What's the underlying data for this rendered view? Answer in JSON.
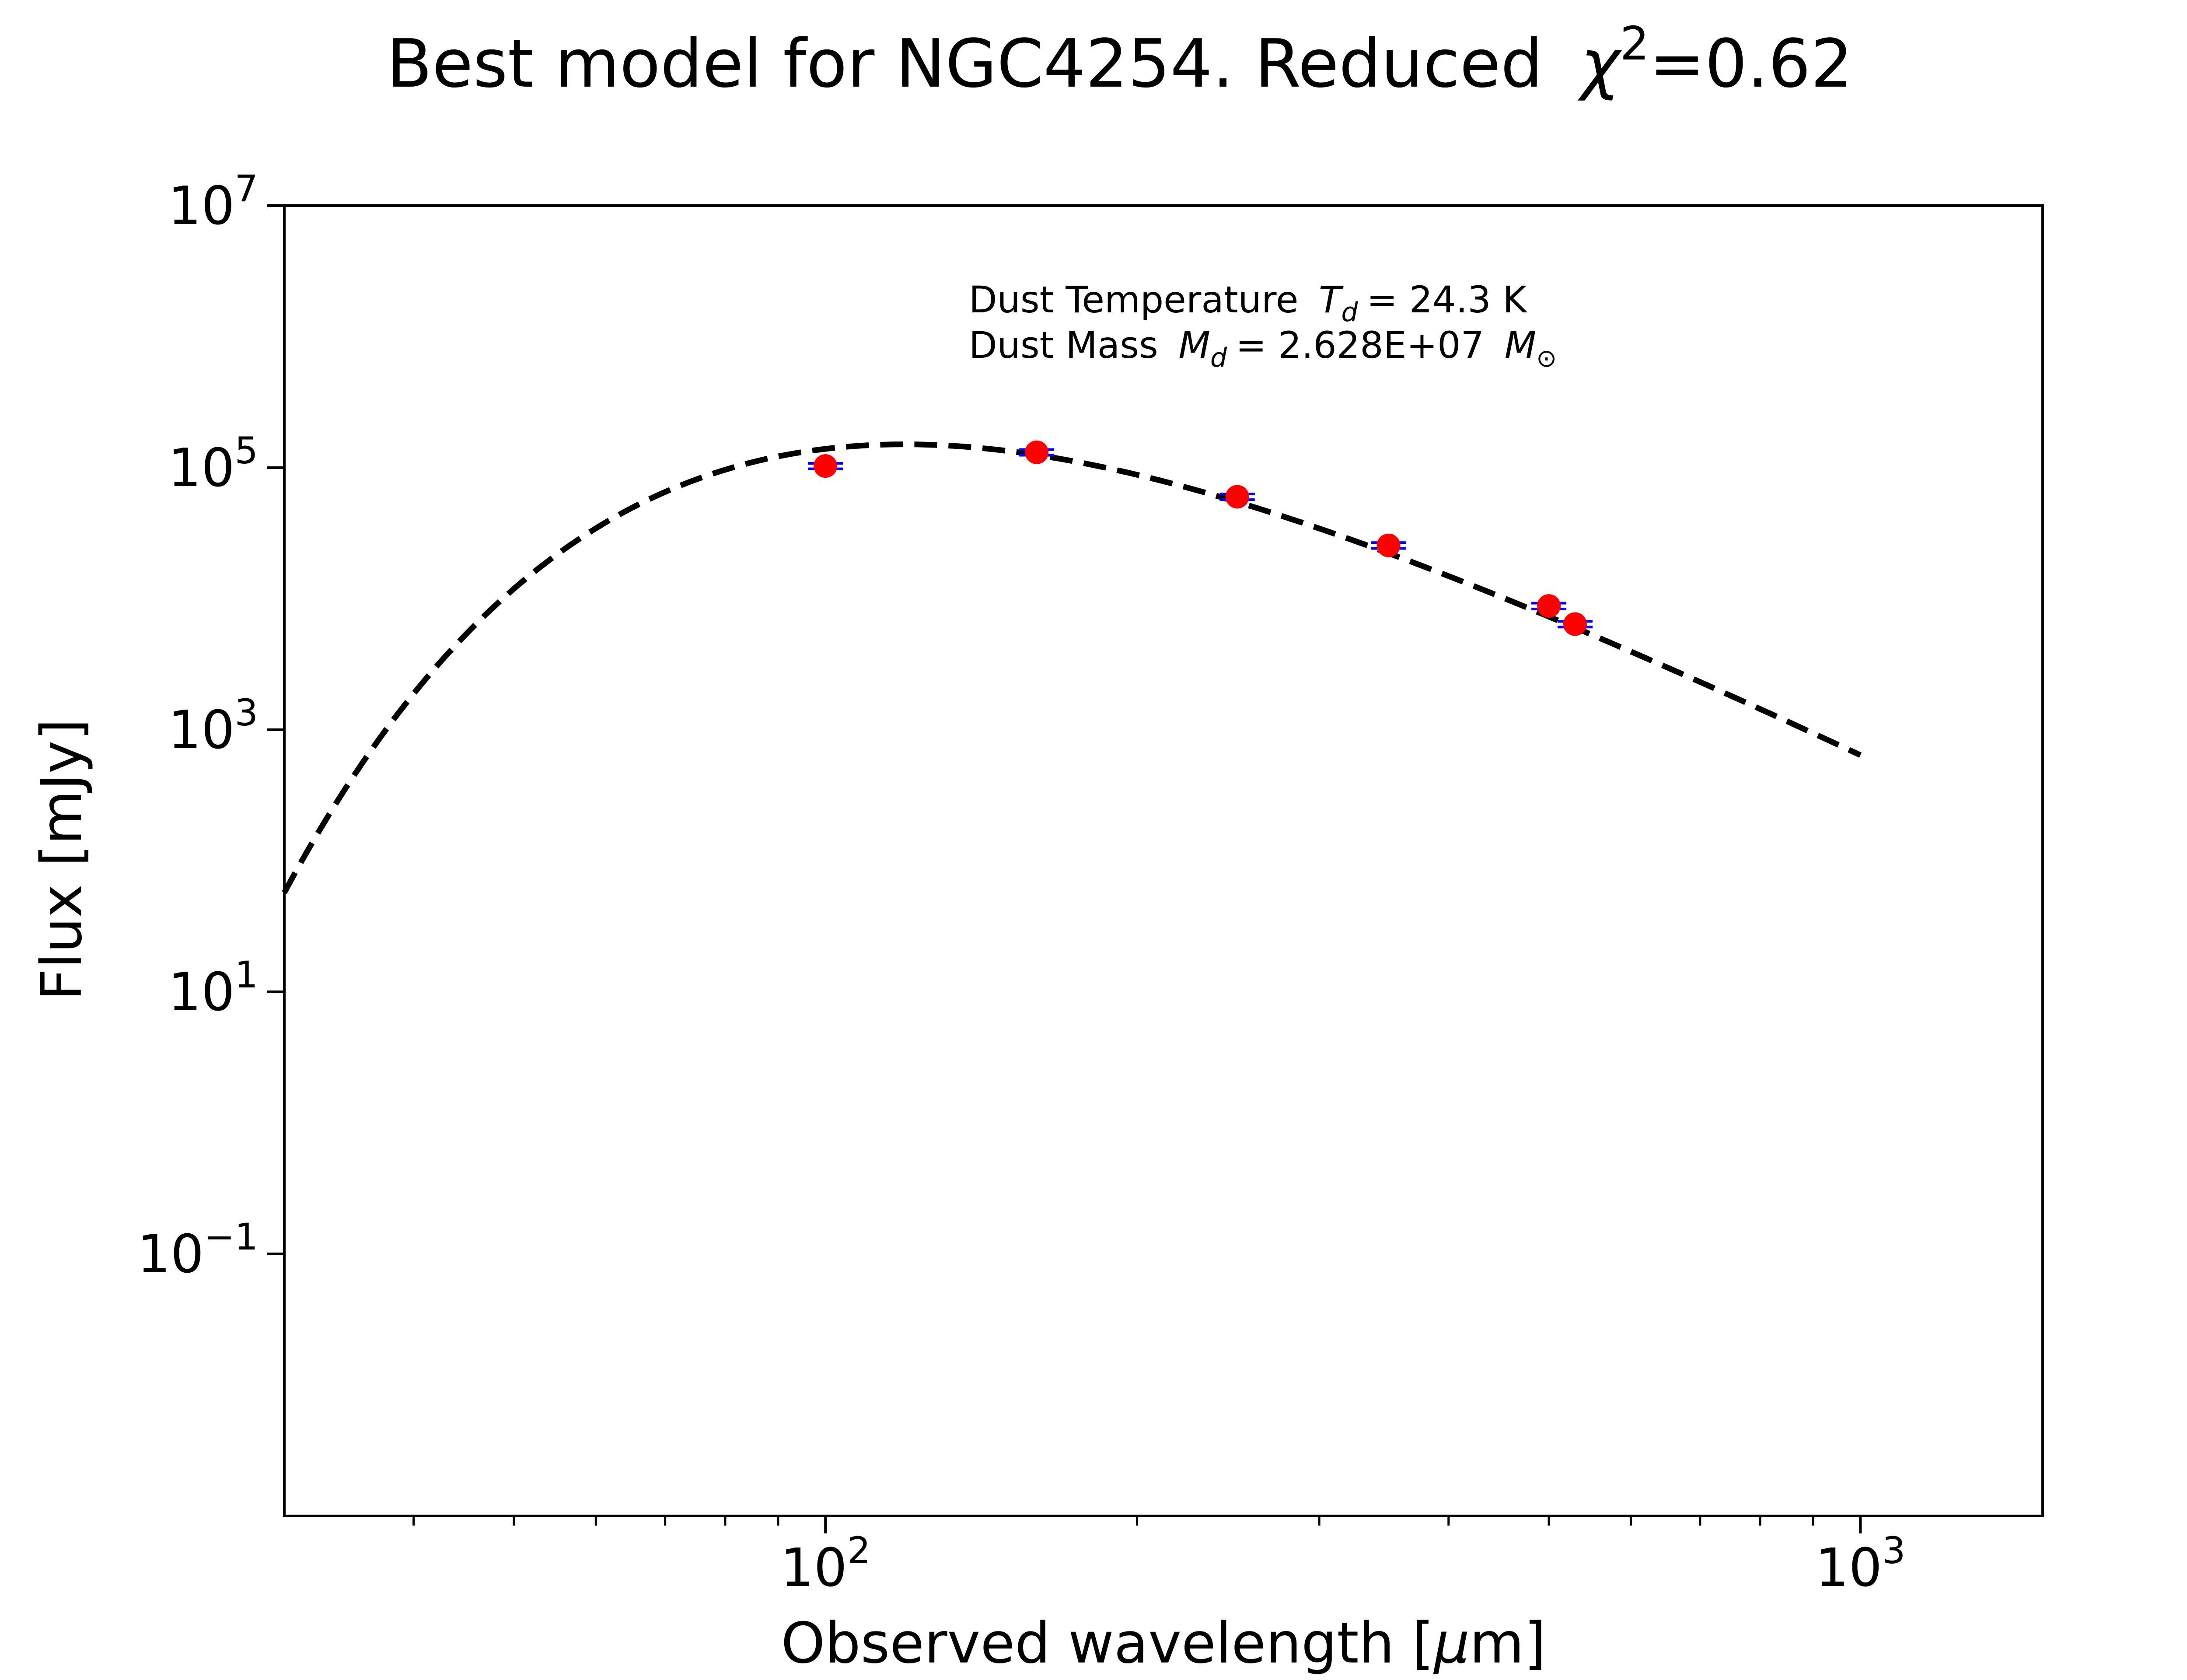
{
  "chart_data": {
    "type": "line",
    "title": "Best model for NGC4254. Reduced",
    "title_chi_symbol": "χ",
    "title_chi_power": "2",
    "title_chi_value": "=0.62",
    "xlabel": "Observed wavelength [",
    "xlabel_mu": "μ",
    "xlabel_end": "m]",
    "ylabel": "Flux [mJy]",
    "x_scale": "log",
    "y_scale": "log",
    "xlim": [
      30,
      1500
    ],
    "ylim": [
      0.001,
      10000000
    ],
    "x_ticks": [
      {
        "base": "10",
        "exp": "2",
        "value": 100
      },
      {
        "base": "10",
        "exp": "3",
        "value": 1000
      }
    ],
    "y_ticks": [
      {
        "base": "10",
        "exp": "−1",
        "value": 0.1
      },
      {
        "base": "10",
        "exp": "1",
        "value": 10
      },
      {
        "base": "10",
        "exp": "3",
        "value": 1000
      },
      {
        "base": "10",
        "exp": "5",
        "value": 100000
      },
      {
        "base": "10",
        "exp": "7",
        "value": 10000000
      }
    ],
    "grid": false,
    "annotation": {
      "temp_prefix": "Dust Temperature",
      "temp_symbol": "T",
      "temp_sub": "d",
      "temp_value": "= 24.3 K",
      "mass_prefix": "Dust Mass",
      "mass_symbol": "M",
      "mass_sub": "d",
      "mass_value": "= 2.628E+07",
      "mass_unit_symbol": "M",
      "mass_unit_sub": "⊙"
    },
    "model": {
      "style": "dashed",
      "color": "#000000",
      "temperature_K": 24.3,
      "beta": 2,
      "x_range": [
        30,
        1000
      ],
      "reference": {
        "x": 160,
        "y": 125000
      }
    },
    "data_points": {
      "marker_color": "#ff0000",
      "errorbar_color": "#0000ff",
      "points": [
        {
          "x": 100,
          "y": 103000,
          "yerr": 5000
        },
        {
          "x": 160,
          "y": 131000,
          "yerr": 6500
        },
        {
          "x": 250,
          "y": 60000,
          "yerr": 3000
        },
        {
          "x": 350,
          "y": 25500,
          "yerr": 1300
        },
        {
          "x": 500,
          "y": 8800,
          "yerr": 450
        },
        {
          "x": 530,
          "y": 6400,
          "yerr": 320
        }
      ]
    }
  }
}
